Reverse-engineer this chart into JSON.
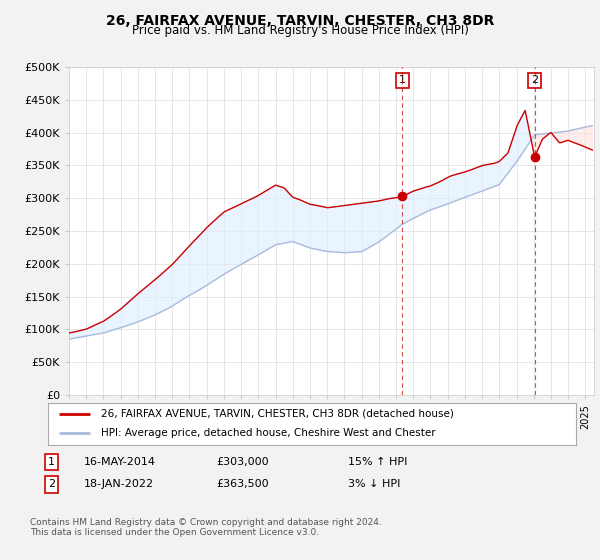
{
  "title": "26, FAIRFAX AVENUE, TARVIN, CHESTER, CH3 8DR",
  "subtitle": "Price paid vs. HM Land Registry's House Price Index (HPI)",
  "ylabel_ticks": [
    "£0",
    "£50K",
    "£100K",
    "£150K",
    "£200K",
    "£250K",
    "£300K",
    "£350K",
    "£400K",
    "£450K",
    "£500K"
  ],
  "ytick_values": [
    0,
    50000,
    100000,
    150000,
    200000,
    250000,
    300000,
    350000,
    400000,
    450000,
    500000
  ],
  "xlim_start": 1995.0,
  "xlim_end": 2025.5,
  "ylim": [
    0,
    500000
  ],
  "hpi_color": "#aabbdd",
  "price_color": "#cc0000",
  "fill_color": "#ddeeff",
  "sale1_x": 2014.37,
  "sale1_y": 303000,
  "sale2_x": 2022.05,
  "sale2_y": 363500,
  "vline1_x": 2014.37,
  "vline2_x": 2022.05,
  "legend_label1": "26, FAIRFAX AVENUE, TARVIN, CHESTER, CH3 8DR (detached house)",
  "legend_label2": "HPI: Average price, detached house, Cheshire West and Chester",
  "note1_num": "1",
  "note1_date": "16-MAY-2014",
  "note1_price": "£303,000",
  "note1_hpi": "15% ↑ HPI",
  "note2_num": "2",
  "note2_date": "18-JAN-2022",
  "note2_price": "£363,500",
  "note2_hpi": "3% ↓ HPI",
  "footer": "Contains HM Land Registry data © Crown copyright and database right 2024.\nThis data is licensed under the Open Government Licence v3.0.",
  "background_color": "#f2f2f2",
  "plot_bg_color": "#ffffff"
}
